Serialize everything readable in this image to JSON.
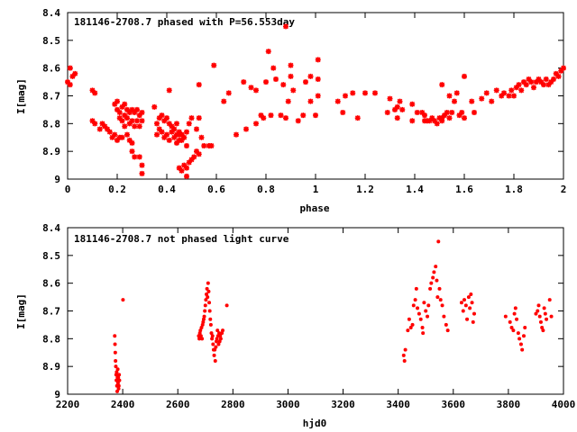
{
  "chart_data": [
    {
      "type": "scatter",
      "title": "181146-2708.7 phased with P=56.553day",
      "xlabel": "phase",
      "ylabel": "I[mag]",
      "xlim": [
        0,
        2
      ],
      "ylim": [
        8.4,
        9
      ],
      "y_inverted": true,
      "xticks": [
        "0",
        "0.2",
        "0.4",
        "0.6",
        "0.8",
        "1",
        "1.2",
        "1.4",
        "1.6",
        "1.8",
        "2"
      ],
      "yticks": [
        "8.4",
        "8.5",
        "8.6",
        "8.7",
        "8.8",
        "8.9",
        "9"
      ],
      "grid": false,
      "marker_color": "#ff0000",
      "points": [
        [
          0.0,
          8.65
        ],
        [
          0.01,
          8.6
        ],
        [
          0.01,
          8.66
        ],
        [
          0.02,
          8.63
        ],
        [
          0.03,
          8.62
        ],
        [
          0.1,
          8.79
        ],
        [
          0.1,
          8.68
        ],
        [
          0.11,
          8.69
        ],
        [
          0.11,
          8.8
        ],
        [
          0.13,
          8.82
        ],
        [
          0.14,
          8.8
        ],
        [
          0.15,
          8.81
        ],
        [
          0.16,
          8.82
        ],
        [
          0.17,
          8.83
        ],
        [
          0.18,
          8.85
        ],
        [
          0.19,
          8.84
        ],
        [
          0.2,
          8.86
        ],
        [
          0.21,
          8.85
        ],
        [
          0.22,
          8.85
        ],
        [
          0.19,
          8.73
        ],
        [
          0.2,
          8.72
        ],
        [
          0.2,
          8.75
        ],
        [
          0.21,
          8.76
        ],
        [
          0.21,
          8.78
        ],
        [
          0.22,
          8.74
        ],
        [
          0.22,
          8.79
        ],
        [
          0.23,
          8.73
        ],
        [
          0.23,
          8.77
        ],
        [
          0.24,
          8.75
        ],
        [
          0.24,
          8.78
        ],
        [
          0.25,
          8.76
        ],
        [
          0.25,
          8.8
        ],
        [
          0.26,
          8.75
        ],
        [
          0.26,
          8.79
        ],
        [
          0.27,
          8.76
        ],
        [
          0.27,
          8.81
        ],
        [
          0.28,
          8.75
        ],
        [
          0.28,
          8.79
        ],
        [
          0.29,
          8.77
        ],
        [
          0.29,
          8.81
        ],
        [
          0.3,
          8.76
        ],
        [
          0.3,
          8.79
        ],
        [
          0.23,
          8.81
        ],
        [
          0.24,
          8.84
        ],
        [
          0.25,
          8.86
        ],
        [
          0.26,
          8.87
        ],
        [
          0.26,
          8.9
        ],
        [
          0.27,
          8.92
        ],
        [
          0.29,
          8.92
        ],
        [
          0.3,
          8.95
        ],
        [
          0.3,
          8.98
        ],
        [
          0.35,
          8.74
        ],
        [
          0.36,
          8.8
        ],
        [
          0.37,
          8.78
        ],
        [
          0.36,
          8.84
        ],
        [
          0.37,
          8.82
        ],
        [
          0.38,
          8.83
        ],
        [
          0.39,
          8.85
        ],
        [
          0.4,
          8.84
        ],
        [
          0.41,
          8.86
        ],
        [
          0.42,
          8.83
        ],
        [
          0.43,
          8.85
        ],
        [
          0.44,
          8.87
        ],
        [
          0.45,
          8.86
        ],
        [
          0.38,
          8.77
        ],
        [
          0.39,
          8.79
        ],
        [
          0.4,
          8.78
        ],
        [
          0.41,
          8.8
        ],
        [
          0.42,
          8.81
        ],
        [
          0.43,
          8.82
        ],
        [
          0.44,
          8.8
        ],
        [
          0.45,
          8.83
        ],
        [
          0.46,
          8.84
        ],
        [
          0.47,
          8.85
        ],
        [
          0.48,
          8.83
        ],
        [
          0.46,
          8.86
        ],
        [
          0.41,
          8.68
        ],
        [
          0.44,
          8.84
        ],
        [
          0.45,
          8.84
        ],
        [
          0.46,
          8.84
        ],
        [
          0.45,
          8.96
        ],
        [
          0.46,
          8.97
        ],
        [
          0.47,
          8.95
        ],
        [
          0.48,
          8.96
        ],
        [
          0.48,
          8.99
        ],
        [
          0.49,
          8.94
        ],
        [
          0.5,
          8.93
        ],
        [
          0.51,
          8.92
        ],
        [
          0.52,
          8.9
        ],
        [
          0.53,
          8.91
        ],
        [
          0.49,
          8.8
        ],
        [
          0.5,
          8.78
        ],
        [
          0.48,
          8.88
        ],
        [
          0.52,
          8.82
        ],
        [
          0.53,
          8.78
        ],
        [
          0.54,
          8.85
        ],
        [
          0.55,
          8.88
        ],
        [
          0.57,
          8.88
        ],
        [
          0.58,
          8.88
        ],
        [
          0.53,
          8.66
        ],
        [
          0.59,
          8.59
        ],
        [
          0.63,
          8.72
        ],
        [
          0.65,
          8.69
        ],
        [
          0.68,
          8.84
        ],
        [
          0.71,
          8.65
        ],
        [
          0.72,
          8.82
        ],
        [
          0.74,
          8.67
        ],
        [
          0.76,
          8.68
        ],
        [
          0.76,
          8.8
        ],
        [
          0.78,
          8.77
        ],
        [
          0.79,
          8.78
        ],
        [
          0.8,
          8.65
        ],
        [
          0.81,
          8.54
        ],
        [
          0.82,
          8.77
        ],
        [
          0.83,
          8.6
        ],
        [
          0.84,
          8.64
        ],
        [
          0.86,
          8.77
        ],
        [
          0.87,
          8.66
        ],
        [
          0.88,
          8.78
        ],
        [
          0.88,
          8.45
        ],
        [
          0.89,
          8.72
        ],
        [
          0.9,
          8.59
        ],
        [
          0.9,
          8.63
        ],
        [
          0.91,
          8.68
        ],
        [
          0.93,
          8.79
        ],
        [
          0.95,
          8.77
        ],
        [
          0.96,
          8.65
        ],
        [
          0.98,
          8.63
        ],
        [
          0.98,
          8.72
        ],
        [
          1.0,
          8.77
        ],
        [
          1.01,
          8.7
        ],
        [
          1.01,
          8.64
        ],
        [
          1.01,
          8.57
        ],
        [
          1.09,
          8.72
        ],
        [
          1.11,
          8.76
        ],
        [
          1.12,
          8.7
        ],
        [
          1.15,
          8.69
        ],
        [
          1.17,
          8.78
        ],
        [
          1.2,
          8.69
        ],
        [
          1.24,
          8.69
        ],
        [
          1.29,
          8.76
        ],
        [
          1.3,
          8.71
        ],
        [
          1.32,
          8.75
        ],
        [
          1.33,
          8.74
        ],
        [
          1.33,
          8.78
        ],
        [
          1.34,
          8.72
        ],
        [
          1.35,
          8.75
        ],
        [
          1.39,
          8.79
        ],
        [
          1.39,
          8.73
        ],
        [
          1.41,
          8.76
        ],
        [
          1.43,
          8.76
        ],
        [
          1.44,
          8.79
        ],
        [
          1.44,
          8.77
        ],
        [
          1.45,
          8.79
        ],
        [
          1.46,
          8.79
        ],
        [
          1.47,
          8.78
        ],
        [
          1.48,
          8.79
        ],
        [
          1.49,
          8.8
        ],
        [
          1.5,
          8.78
        ],
        [
          1.51,
          8.78
        ],
        [
          1.51,
          8.79
        ],
        [
          1.52,
          8.77
        ],
        [
          1.51,
          8.66
        ],
        [
          1.53,
          8.76
        ],
        [
          1.54,
          8.7
        ],
        [
          1.54,
          8.78
        ],
        [
          1.55,
          8.76
        ],
        [
          1.56,
          8.72
        ],
        [
          1.57,
          8.69
        ],
        [
          1.58,
          8.77
        ],
        [
          1.59,
          8.76
        ],
        [
          1.6,
          8.78
        ],
        [
          1.6,
          8.63
        ],
        [
          1.63,
          8.72
        ],
        [
          1.64,
          8.76
        ],
        [
          1.67,
          8.71
        ],
        [
          1.69,
          8.69
        ],
        [
          1.71,
          8.72
        ],
        [
          1.73,
          8.68
        ],
        [
          1.75,
          8.7
        ],
        [
          1.76,
          8.69
        ],
        [
          1.78,
          8.7
        ],
        [
          1.79,
          8.68
        ],
        [
          1.8,
          8.7
        ],
        [
          1.81,
          8.67
        ],
        [
          1.82,
          8.66
        ],
        [
          1.83,
          8.68
        ],
        [
          1.84,
          8.65
        ],
        [
          1.85,
          8.66
        ],
        [
          1.86,
          8.64
        ],
        [
          1.87,
          8.65
        ],
        [
          1.88,
          8.67
        ],
        [
          1.89,
          8.65
        ],
        [
          1.9,
          8.64
        ],
        [
          1.91,
          8.65
        ],
        [
          1.92,
          8.66
        ],
        [
          1.93,
          8.64
        ],
        [
          1.94,
          8.66
        ],
        [
          1.95,
          8.65
        ],
        [
          1.96,
          8.64
        ],
        [
          1.97,
          8.62
        ],
        [
          1.98,
          8.63
        ],
        [
          1.99,
          8.61
        ],
        [
          2.0,
          8.6
        ]
      ]
    },
    {
      "type": "scatter",
      "title": "181146-2708.7 not phased light curve",
      "xlabel": "hjd0",
      "ylabel": "I[mag]",
      "xlim": [
        2200,
        4000
      ],
      "ylim": [
        8.4,
        9
      ],
      "y_inverted": true,
      "xticks": [
        "2200",
        "2400",
        "2600",
        "2800",
        "3000",
        "3200",
        "3400",
        "3600",
        "3800",
        "4000"
      ],
      "yticks": [
        "8.4",
        "8.5",
        "8.6",
        "8.7",
        "8.8",
        "8.9",
        "9"
      ],
      "grid": false,
      "marker_color": "#ff0000",
      "points": [
        [
          2371,
          8.79
        ],
        [
          2372,
          8.82
        ],
        [
          2373,
          8.85
        ],
        [
          2374,
          8.88
        ],
        [
          2375,
          8.9
        ],
        [
          2376,
          8.93
        ],
        [
          2377,
          8.95
        ],
        [
          2378,
          8.92
        ],
        [
          2379,
          8.97
        ],
        [
          2380,
          8.99
        ],
        [
          2381,
          8.94
        ],
        [
          2382,
          8.91
        ],
        [
          2383,
          8.96
        ],
        [
          2384,
          8.94
        ],
        [
          2385,
          8.98
        ],
        [
          2386,
          8.97
        ],
        [
          2387,
          8.93
        ],
        [
          2388,
          8.95
        ],
        [
          2401,
          8.66
        ],
        [
          2676,
          8.79
        ],
        [
          2678,
          8.8
        ],
        [
          2680,
          8.78
        ],
        [
          2682,
          8.77
        ],
        [
          2684,
          8.79
        ],
        [
          2686,
          8.76
        ],
        [
          2688,
          8.8
        ],
        [
          2690,
          8.75
        ],
        [
          2692,
          8.74
        ],
        [
          2694,
          8.73
        ],
        [
          2696,
          8.72
        ],
        [
          2698,
          8.7
        ],
        [
          2700,
          8.68
        ],
        [
          2702,
          8.66
        ],
        [
          2704,
          8.64
        ],
        [
          2706,
          8.62
        ],
        [
          2708,
          8.65
        ],
        [
          2710,
          8.6
        ],
        [
          2712,
          8.63
        ],
        [
          2714,
          8.67
        ],
        [
          2716,
          8.7
        ],
        [
          2718,
          8.73
        ],
        [
          2720,
          8.75
        ],
        [
          2722,
          8.78
        ],
        [
          2724,
          8.8
        ],
        [
          2726,
          8.79
        ],
        [
          2728,
          8.82
        ],
        [
          2730,
          8.84
        ],
        [
          2732,
          8.86
        ],
        [
          2734,
          8.84
        ],
        [
          2736,
          8.88
        ],
        [
          2738,
          8.83
        ],
        [
          2740,
          8.81
        ],
        [
          2742,
          8.8
        ],
        [
          2744,
          8.77
        ],
        [
          2746,
          8.79
        ],
        [
          2748,
          8.82
        ],
        [
          2750,
          8.78
        ],
        [
          2752,
          8.81
        ],
        [
          2754,
          8.79
        ],
        [
          2756,
          8.8
        ],
        [
          2760,
          8.78
        ],
        [
          2763,
          8.77
        ],
        [
          2778,
          8.68
        ],
        [
          3420,
          8.86
        ],
        [
          3423,
          8.88
        ],
        [
          3426,
          8.84
        ],
        [
          3435,
          8.77
        ],
        [
          3440,
          8.73
        ],
        [
          3446,
          8.76
        ],
        [
          3452,
          8.75
        ],
        [
          3456,
          8.68
        ],
        [
          3462,
          8.66
        ],
        [
          3466,
          8.62
        ],
        [
          3470,
          8.69
        ],
        [
          3476,
          8.71
        ],
        [
          3482,
          8.73
        ],
        [
          3488,
          8.76
        ],
        [
          3490,
          8.78
        ],
        [
          3494,
          8.67
        ],
        [
          3500,
          8.7
        ],
        [
          3506,
          8.72
        ],
        [
          3510,
          8.68
        ],
        [
          3516,
          8.62
        ],
        [
          3520,
          8.6
        ],
        [
          3526,
          8.58
        ],
        [
          3530,
          8.56
        ],
        [
          3536,
          8.54
        ],
        [
          3540,
          8.59
        ],
        [
          3543,
          8.65
        ],
        [
          3546,
          8.45
        ],
        [
          3550,
          8.62
        ],
        [
          3554,
          8.66
        ],
        [
          3560,
          8.68
        ],
        [
          3566,
          8.72
        ],
        [
          3574,
          8.75
        ],
        [
          3580,
          8.77
        ],
        [
          3630,
          8.67
        ],
        [
          3636,
          8.7
        ],
        [
          3640,
          8.66
        ],
        [
          3646,
          8.68
        ],
        [
          3650,
          8.73
        ],
        [
          3656,
          8.65
        ],
        [
          3660,
          8.69
        ],
        [
          3664,
          8.64
        ],
        [
          3668,
          8.67
        ],
        [
          3672,
          8.74
        ],
        [
          3676,
          8.71
        ],
        [
          3790,
          8.72
        ],
        [
          3806,
          8.74
        ],
        [
          3812,
          8.76
        ],
        [
          3818,
          8.77
        ],
        [
          3822,
          8.71
        ],
        [
          3826,
          8.69
        ],
        [
          3830,
          8.73
        ],
        [
          3836,
          8.78
        ],
        [
          3840,
          8.8
        ],
        [
          3846,
          8.82
        ],
        [
          3850,
          8.84
        ],
        [
          3856,
          8.79
        ],
        [
          3860,
          8.76
        ],
        [
          3900,
          8.71
        ],
        [
          3906,
          8.7
        ],
        [
          3910,
          8.68
        ],
        [
          3914,
          8.72
        ],
        [
          3918,
          8.74
        ],
        [
          3922,
          8.76
        ],
        [
          3926,
          8.77
        ],
        [
          3930,
          8.69
        ],
        [
          3934,
          8.71
        ],
        [
          3938,
          8.73
        ],
        [
          3950,
          8.66
        ],
        [
          3956,
          8.72
        ]
      ]
    }
  ]
}
